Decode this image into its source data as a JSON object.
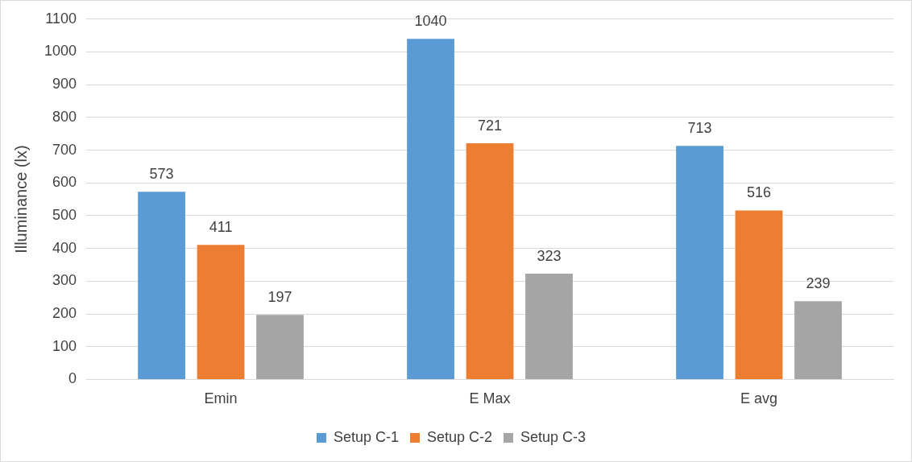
{
  "chart_data": {
    "type": "bar",
    "ylabel": "Illuminance (lx)",
    "categories": [
      "Emin",
      "E Max",
      "E avg"
    ],
    "series": [
      {
        "name": "Setup C-1",
        "color": "#5b9bd5",
        "values": [
          573,
          1040,
          713
        ]
      },
      {
        "name": "Setup C-2",
        "color": "#ed7d31",
        "values": [
          411,
          721,
          516
        ]
      },
      {
        "name": "Setup C-3",
        "color": "#a5a5a5",
        "values": [
          197,
          323,
          239
        ]
      }
    ],
    "ylim": [
      0,
      1100
    ],
    "yticks": [
      0,
      100,
      200,
      300,
      400,
      500,
      600,
      700,
      800,
      900,
      1000,
      1100
    ],
    "grid": "y",
    "legend": "bottom",
    "data_labels": true
  }
}
